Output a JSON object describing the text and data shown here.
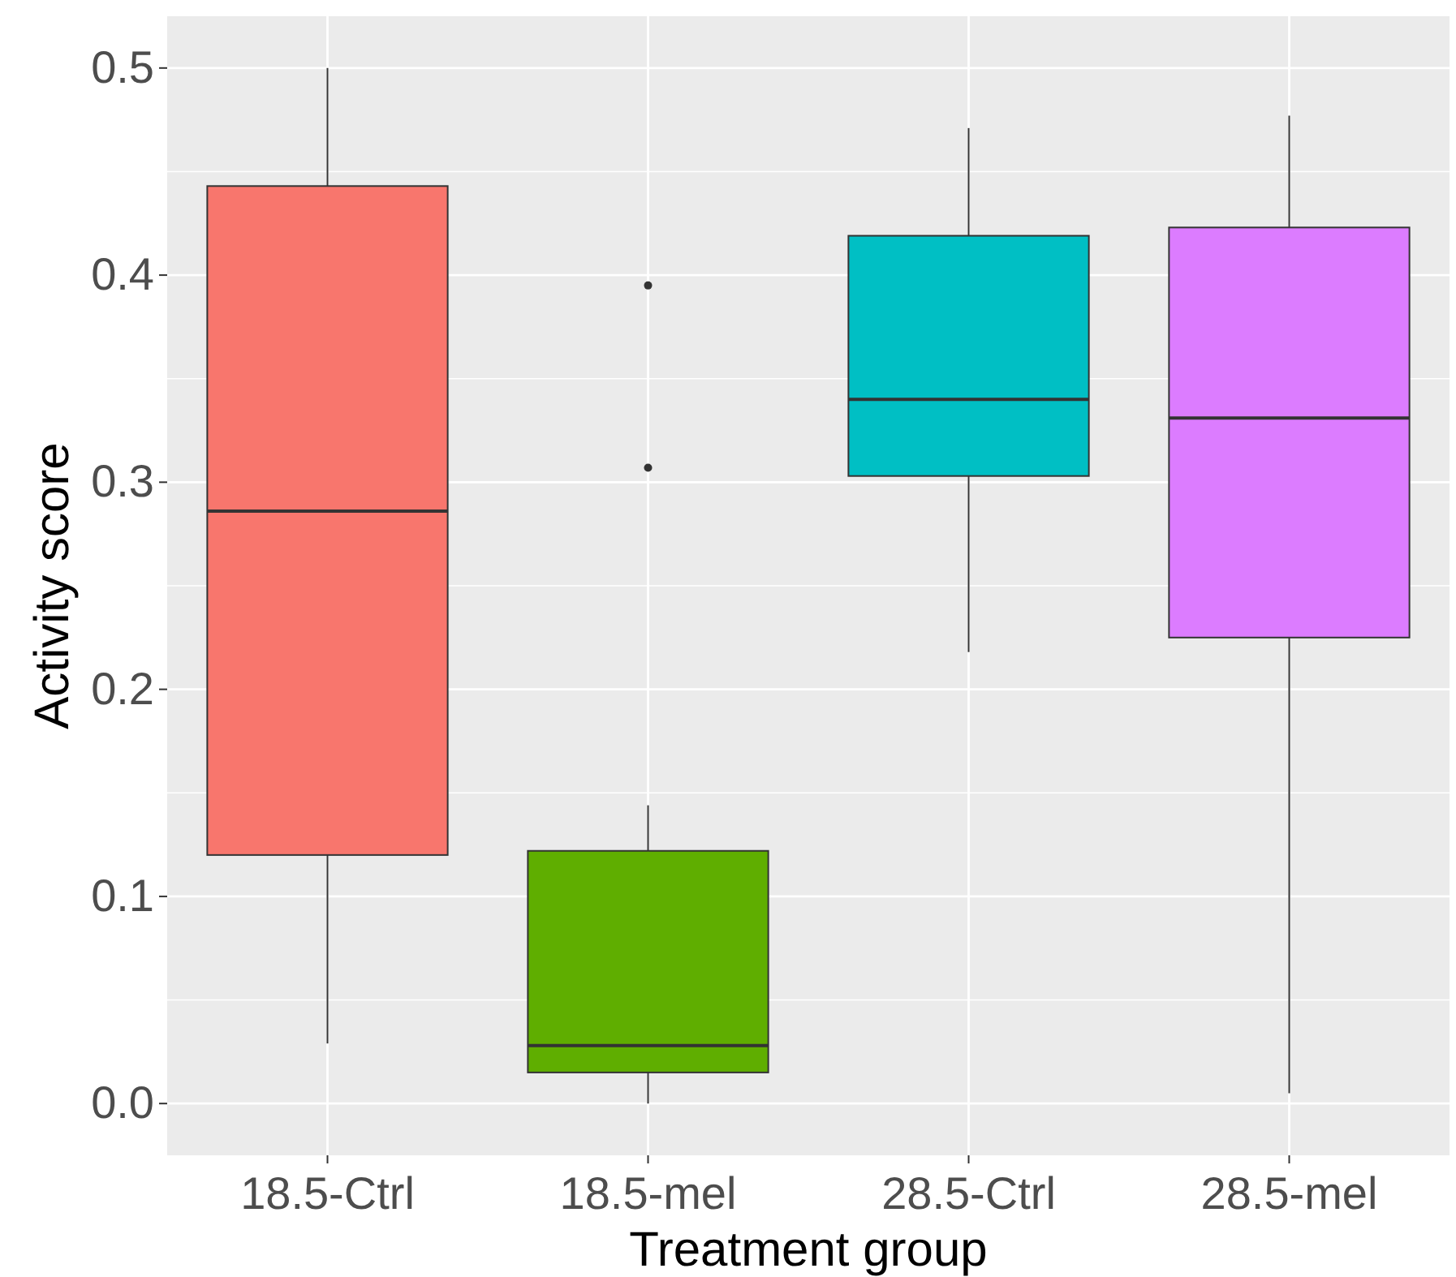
{
  "chart_data": {
    "type": "box",
    "xlabel": "Treatment group",
    "ylabel": "Activity score",
    "categories": [
      "18.5-Ctrl",
      "18.5-mel",
      "28.5-Ctrl",
      "28.5-mel"
    ],
    "colors": [
      "#f8766d",
      "#5fae00",
      "#00bfc4",
      "#dc7cff"
    ],
    "boxes": [
      {
        "low": 0.029,
        "q1": 0.12,
        "median": 0.286,
        "q3": 0.443,
        "high": 0.5
      },
      {
        "low": 0.0,
        "q1": 0.015,
        "median": 0.028,
        "q3": 0.122,
        "high": 0.144,
        "outliers": [
          0.395,
          0.307
        ]
      },
      {
        "low": 0.218,
        "q1": 0.303,
        "median": 0.34,
        "q3": 0.419,
        "high": 0.471
      },
      {
        "low": 0.005,
        "q1": 0.225,
        "median": 0.331,
        "q3": 0.423,
        "high": 0.477
      }
    ],
    "ylim": [
      -0.025,
      0.525
    ],
    "yticks": [
      {
        "value": 0,
        "label": "0.0"
      },
      0.1,
      0.2,
      0.3,
      0.4,
      0.5
    ],
    "grid": true
  }
}
